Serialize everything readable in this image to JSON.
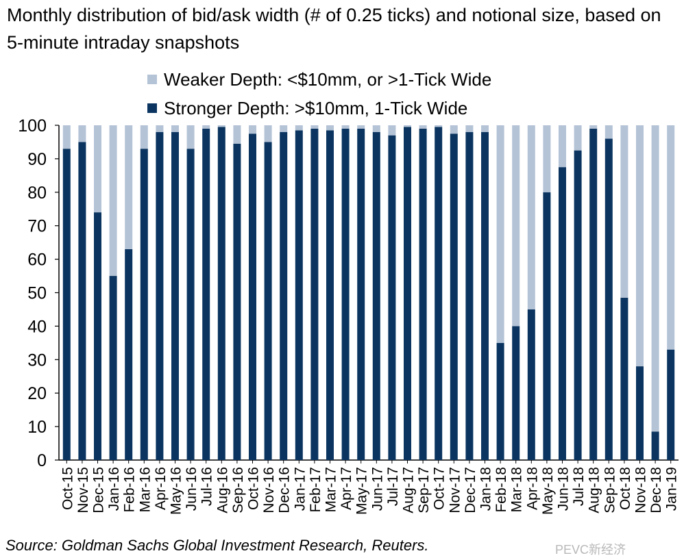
{
  "title": "Monthly distribution of bid/ask width (# of 0.25 ticks) and notional size, based on 5-minute intraday snapshots",
  "source": "Source: Goldman Sachs Global Investment Research, Reuters.",
  "watermark": "PEVC新经济",
  "colors": {
    "stronger": "#0b3560",
    "weaker": "#b4c3d6"
  },
  "legend": [
    {
      "label": "Weaker Depth: <$10mm, or >1-Tick Wide",
      "series": "weaker"
    },
    {
      "label": "Stronger Depth: >$10mm, 1-Tick Wide",
      "series": "stronger"
    }
  ],
  "chart_data": {
    "type": "bar",
    "stacked": true,
    "title": "Monthly distribution of bid/ask width (# of 0.25 ticks) and notional size, based on 5-minute intraday snapshots",
    "xlabel": "",
    "ylabel": "",
    "ylim": [
      0,
      100
    ],
    "yticks": [
      "0",
      "10",
      "20",
      "30",
      "40",
      "50",
      "60",
      "70",
      "80",
      "90",
      "100"
    ],
    "categories": [
      "Oct-15",
      "Nov-15",
      "Dec-15",
      "Jan-16",
      "Feb-16",
      "Mar-16",
      "Apr-16",
      "May-16",
      "Jun-16",
      "Jul-16",
      "Aug-16",
      "Sep-16",
      "Oct-16",
      "Nov-16",
      "Dec-16",
      "Jan-17",
      "Feb-17",
      "Mar-17",
      "Apr-17",
      "May-17",
      "Jun-17",
      "Jul-17",
      "Aug-17",
      "Sep-17",
      "Oct-17",
      "Nov-17",
      "Dec-17",
      "Jan-18",
      "Feb-18",
      "Mar-18",
      "Apr-18",
      "May-18",
      "Jun-18",
      "Jul-18",
      "Aug-18",
      "Sep-18",
      "Oct-18",
      "Nov-18",
      "Dec-18",
      "Jan-19"
    ],
    "series": [
      {
        "name": "Stronger Depth: >$10mm, 1-Tick Wide",
        "values": [
          93,
          95,
          74,
          55,
          63,
          93,
          98,
          98,
          93,
          99,
          99.5,
          94.5,
          97.5,
          95,
          98,
          98.5,
          99,
          98.5,
          99,
          99,
          98,
          97,
          99.5,
          99,
          99.5,
          97.5,
          98,
          98,
          35,
          40,
          45,
          80,
          87.5,
          92.5,
          99,
          96,
          48.5,
          28,
          8.5,
          33
        ]
      },
      {
        "name": "Weaker Depth: <$10mm, or >1-Tick Wide",
        "values": [
          7,
          5,
          26,
          45,
          37,
          7,
          2,
          2,
          7,
          1,
          0.5,
          5.5,
          2.5,
          5,
          2,
          1.5,
          1,
          1.5,
          1,
          1,
          2,
          3,
          0.5,
          1,
          0.5,
          2.5,
          2,
          2,
          65,
          60,
          55,
          20,
          12.5,
          7.5,
          1,
          4,
          51.5,
          72,
          91.5,
          67
        ]
      }
    ]
  }
}
